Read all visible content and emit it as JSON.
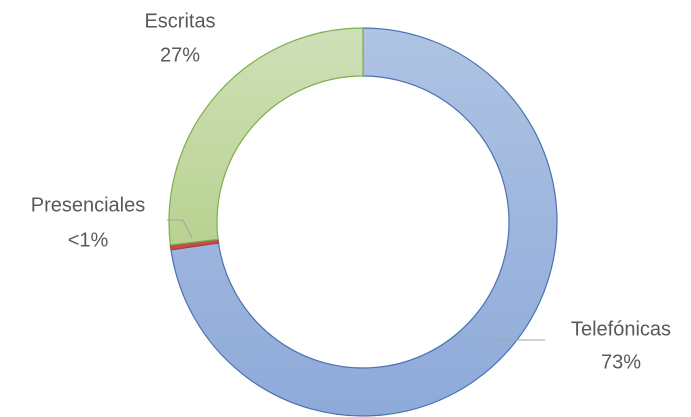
{
  "chart_data": {
    "type": "donut",
    "categories": [
      "Telefónicas",
      "Presenciales",
      "Escritas"
    ],
    "values": [
      73,
      0.4,
      27
    ],
    "value_labels": [
      "73%",
      "<1%",
      "27%"
    ],
    "colors": [
      "#9fb6de",
      "#c0504d",
      "#c3d9a2"
    ],
    "strokes": [
      "#4a72b0",
      "#b03a36",
      "#7fae4b"
    ]
  }
}
